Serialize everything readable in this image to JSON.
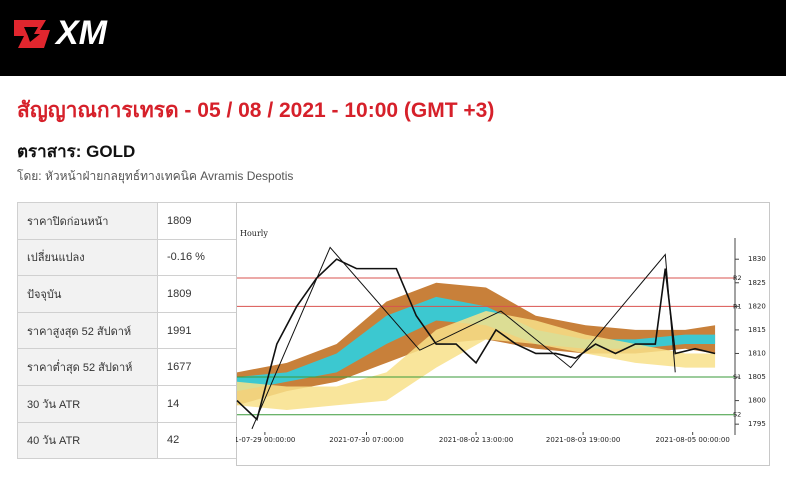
{
  "header": {
    "logo": "XM"
  },
  "title": "สัญญาณการเทรด - 05 / 08 / 2021 - 10:00 (GMT +3)",
  "instrument": "ตราสาร: GOLD",
  "byline": "โดย: หัวหน้าฝ่ายกลยุทธ์ทางเทคนิค Avramis Despotis",
  "table": {
    "rows": [
      [
        "ราคาปิดก่อนหน้า",
        "1809"
      ],
      [
        "เปลี่ยนแปลง",
        "-0.16 %"
      ],
      [
        "ปัจจุบัน",
        "1809"
      ],
      [
        "ราคาสูงสุด 52 สัปดาห์",
        "1991"
      ],
      [
        "ราคาต่ำสุด 52 สัปดาห์",
        "1677"
      ],
      [
        "30 วัน ATR",
        "14"
      ],
      [
        "40 วัน ATR",
        "42"
      ]
    ]
  },
  "chart_data": {
    "type": "line",
    "title": "Hourly",
    "xlim": [
      0,
      100
    ],
    "ylim": [
      1792.7,
      1834.5
    ],
    "yticks": [
      1795,
      1800,
      1805,
      1810,
      1815,
      1820,
      1825,
      1830
    ],
    "xticks": [
      {
        "value": 5.6,
        "label": "1-07-29 00:00:00"
      },
      {
        "value": 26,
        "label": "2021-07-30 07:00:00"
      },
      {
        "value": 48,
        "label": "2021-08-02 13:00:00"
      },
      {
        "value": 69.5,
        "label": "2021-08-03 19:00:00"
      },
      {
        "value": 91.5,
        "label": "2021-08-05 00:00:00"
      }
    ],
    "levels": [
      {
        "name": "R2",
        "value": 1826,
        "color": "#d9534f"
      },
      {
        "name": "R1",
        "value": 1820,
        "color": "#d9534f"
      },
      {
        "name": "S1",
        "value": 1805,
        "color": "#3a9a3a"
      },
      {
        "name": "S2",
        "value": 1797,
        "color": "#3a9a3a"
      }
    ],
    "bands": [
      {
        "color": "#c8803a",
        "x": [
          0,
          10,
          20,
          30,
          40,
          50,
          60,
          70,
          80,
          90,
          96
        ],
        "upper": [
          1806,
          1808,
          1812,
          1821,
          1825,
          1824,
          1818,
          1816,
          1815,
          1815,
          1816
        ],
        "lower": [
          1799,
          1802,
          1804,
          1808,
          1812,
          1813,
          1811,
          1810,
          1810,
          1811,
          1810
        ]
      },
      {
        "color": "#3cc8d0",
        "x": [
          0,
          10,
          20,
          30,
          40,
          50,
          60,
          70,
          80,
          90,
          96
        ],
        "upper": [
          1805,
          1806,
          1810,
          1818,
          1822,
          1820,
          1815,
          1813,
          1813,
          1814,
          1814
        ],
        "lower": [
          1802,
          1804,
          1806,
          1812,
          1817,
          1816,
          1812,
          1811,
          1811,
          1812,
          1812
        ]
      },
      {
        "color": "#f8e08a",
        "x": [
          0,
          10,
          20,
          30,
          40,
          50,
          60,
          70,
          80,
          90,
          96
        ],
        "upper": [
          1804,
          1803,
          1803,
          1806,
          1815,
          1819,
          1817,
          1814,
          1812,
          1810,
          1810
        ],
        "lower": [
          1799,
          1798,
          1799,
          1800,
          1807,
          1813,
          1812,
          1810,
          1808,
          1807,
          1807
        ]
      }
    ],
    "series": [
      {
        "name": "price",
        "color": "#111111",
        "x": [
          0,
          4,
          8,
          12,
          16,
          20,
          24,
          28,
          32,
          36,
          40,
          44,
          48,
          52,
          56,
          60,
          64,
          68,
          72,
          76,
          80,
          84,
          86,
          88,
          92,
          96
        ],
        "values": [
          1800,
          1796,
          1812,
          1820,
          1826,
          1830,
          1828,
          1828,
          1828,
          1818,
          1812,
          1812,
          1808,
          1815,
          1812,
          1810,
          1810,
          1809,
          1812,
          1810,
          1812,
          1812,
          1828,
          1810,
          1811,
          1810
        ]
      },
      {
        "name": "zigzag",
        "color": "#111111",
        "x": [
          3,
          18.7,
          36.7,
          53,
          67,
          86,
          88
        ],
        "values": [
          1794,
          1832.5,
          1810.7,
          1819,
          1807,
          1831,
          1806
        ]
      }
    ]
  }
}
